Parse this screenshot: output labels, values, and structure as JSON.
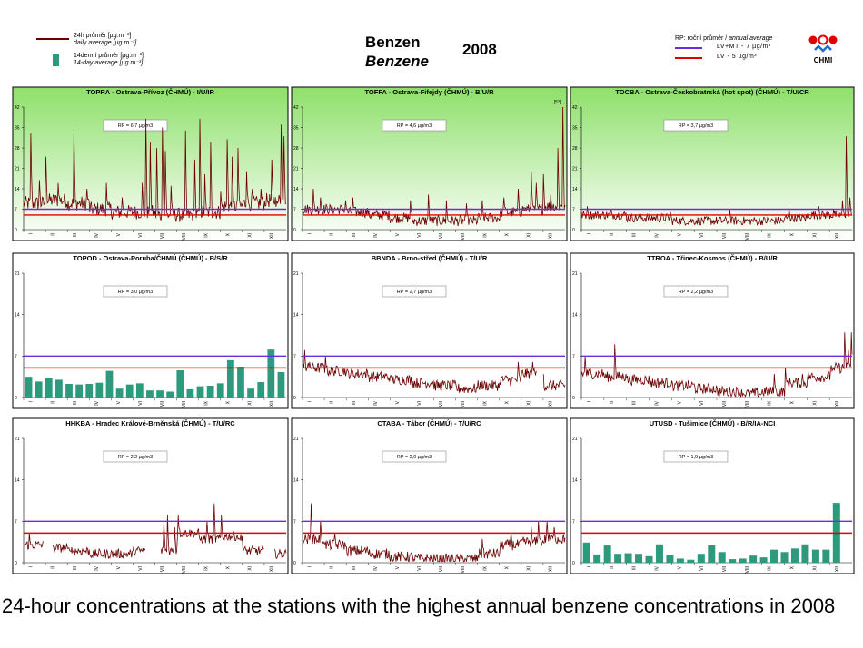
{
  "header": {
    "title_cz": "Benzen",
    "title_en": "Benzene",
    "year": "2008",
    "legend_left": [
      {
        "kind": "line",
        "color": "#6b0000",
        "cz": "24h průměr [µg.m⁻³]",
        "en": "daily average [µg.m⁻³]"
      },
      {
        "kind": "bar",
        "color": "#2e9a7d",
        "cz": "14denní průměr [µg.m⁻³]",
        "en": "14-day average [µg.m⁻³]"
      }
    ],
    "legend_right": {
      "heading_cz": "RP: roční průměr / ",
      "heading_en": "annual average",
      "items": [
        {
          "color": "#6a2ee0",
          "label": "LV+MT -   7 µg/m³"
        },
        {
          "color": "#e00000",
          "label": "LV    - 5 µg/m³"
        }
      ]
    },
    "logo_text": "CHMI"
  },
  "caption": "24-hour concentrations at the stations with the highest annual benzene concentrations in 2008",
  "chart_data": [
    {
      "type": "line",
      "title": "TOPRA - Ostrava-Přívoz (ČHMÚ) - I/U/IR",
      "rp_label": "RP = 6,7 µg/m3",
      "ylim": [
        0,
        42
      ],
      "yticks": [
        0,
        7,
        14,
        21,
        28,
        35,
        42
      ],
      "months": [
        "I",
        "II",
        "III",
        "IV",
        "V",
        "VI",
        "VII",
        "VIII",
        "IX",
        "X",
        "XI",
        "XII"
      ],
      "green_bg": true,
      "reference_lines": [
        {
          "value": 7,
          "color": "#6a2ee0"
        },
        {
          "value": 5,
          "color": "#e00000"
        }
      ],
      "profile": [
        9,
        10,
        9,
        7,
        6,
        6,
        5,
        5,
        6,
        8,
        9,
        10
      ],
      "spikes": [
        [
          10,
          33
        ],
        [
          22,
          17
        ],
        [
          31,
          25
        ],
        [
          48,
          16
        ],
        [
          70,
          34
        ],
        [
          88,
          14
        ],
        [
          115,
          16
        ],
        [
          137,
          11
        ],
        [
          165,
          16
        ],
        [
          170,
          38
        ],
        [
          176,
          30
        ],
        [
          185,
          28
        ],
        [
          193,
          35
        ],
        [
          197,
          27
        ],
        [
          205,
          15
        ],
        [
          225,
          34
        ],
        [
          238,
          24
        ],
        [
          245,
          38
        ],
        [
          252,
          19
        ],
        [
          260,
          30
        ],
        [
          274,
          13
        ],
        [
          283,
          31
        ],
        [
          290,
          25
        ],
        [
          298,
          28
        ],
        [
          310,
          20
        ],
        [
          318,
          14
        ],
        [
          330,
          14
        ],
        [
          345,
          24
        ],
        [
          352,
          10
        ],
        [
          358,
          36
        ],
        [
          362,
          32
        ]
      ],
      "noise": 2.5,
      "clip_label": ""
    },
    {
      "type": "line",
      "title": "TOFFA - Ostrava-Fifejdy (ČHMÚ) - B/U/R",
      "rp_label": "RP = 4,6 µg/m3",
      "ylim": [
        0,
        42
      ],
      "yticks": [
        0,
        7,
        14,
        21,
        28,
        35,
        42
      ],
      "months": [
        "I",
        "II",
        "III",
        "IV",
        "V",
        "VI",
        "VII",
        "VIII",
        "IX",
        "X",
        "XI",
        "XII"
      ],
      "green_bg": true,
      "reference_lines": [
        {
          "value": 7,
          "color": "#6a2ee0"
        },
        {
          "value": 5,
          "color": "#e00000"
        }
      ],
      "profile": [
        7,
        7,
        6,
        5,
        4,
        3,
        3,
        3,
        4,
        6,
        7,
        8
      ],
      "spikes": [
        [
          15,
          14
        ],
        [
          25,
          11
        ],
        [
          60,
          10
        ],
        [
          70,
          11
        ],
        [
          150,
          10
        ],
        [
          175,
          12
        ],
        [
          200,
          10
        ],
        [
          228,
          9
        ],
        [
          250,
          10
        ],
        [
          280,
          11
        ],
        [
          300,
          14
        ],
        [
          318,
          20
        ],
        [
          325,
          16
        ],
        [
          335,
          19
        ],
        [
          345,
          12
        ],
        [
          355,
          28
        ],
        [
          362,
          42
        ]
      ],
      "noise": 1.8,
      "clip_label": "[53]"
    },
    {
      "type": "line",
      "title": "TOCBA - Ostrava-Českobratrská (hot spot) (ČHMÚ) - T/U/CR",
      "rp_label": "RP = 3,7 µg/m3",
      "ylim": [
        0,
        42
      ],
      "yticks": [
        0,
        7,
        14,
        21,
        28,
        35,
        42
      ],
      "months": [
        "I",
        "II",
        "III",
        "IV",
        "V",
        "VI",
        "VII",
        "VIII",
        "IX",
        "X",
        "XI",
        "XII"
      ],
      "green_bg": true,
      "reference_lines": [
        {
          "value": 7,
          "color": "#6a2ee0"
        },
        {
          "value": 5,
          "color": "#e00000"
        }
      ],
      "profile": [
        5,
        5,
        4,
        4,
        3,
        3,
        3,
        3,
        3,
        4,
        5,
        5
      ],
      "spikes": [
        [
          8,
          8
        ],
        [
          40,
          7
        ],
        [
          120,
          6
        ],
        [
          200,
          7
        ],
        [
          280,
          7
        ],
        [
          320,
          8
        ],
        [
          340,
          7
        ],
        [
          352,
          10
        ],
        [
          357,
          32
        ],
        [
          362,
          11
        ]
      ],
      "noise": 1.5,
      "clip_label": ""
    },
    {
      "type": "bar",
      "title": "TOPOD - Ostrava-Poruba/ČHMÚ (ČHMÚ) - B/S/R",
      "rp_label": "RP = 3,0 µg/m3",
      "ylim": [
        0,
        21
      ],
      "yticks": [
        0,
        7,
        14,
        21
      ],
      "months": [
        "I",
        "II",
        "III",
        "IV",
        "V",
        "VI",
        "VII",
        "VIII",
        "IX",
        "X",
        "XI",
        "XII"
      ],
      "green_bg": false,
      "reference_lines": [
        {
          "value": 7,
          "color": "#6a2ee0"
        },
        {
          "value": 5,
          "color": "#e00000"
        }
      ],
      "values": [
        3.5,
        2.7,
        3.3,
        3.0,
        2.3,
        2.2,
        2.3,
        2.5,
        4.5,
        1.5,
        2.2,
        2.4,
        1.2,
        1.2,
        1.0,
        4.6,
        1.4,
        1.9,
        2.0,
        2.4,
        6.3,
        5.2,
        1.5,
        2.6,
        8.1,
        4.3
      ]
    },
    {
      "type": "line",
      "title": "BBNDA - Brno-střed (ČHMÚ) - T/U/R",
      "rp_label": "RP = 2,7 µg/m3",
      "ylim": [
        0,
        21
      ],
      "yticks": [
        0,
        7,
        14,
        21
      ],
      "months": [
        "I",
        "II",
        "III",
        "IV",
        "V",
        "VI",
        "VII",
        "VIII",
        "IX",
        "X",
        "XI",
        "XII"
      ],
      "green_bg": false,
      "reference_lines": [
        {
          "value": 7,
          "color": "#6a2ee0"
        },
        {
          "value": 5,
          "color": "#e00000"
        }
      ],
      "profile": [
        5,
        4.5,
        4,
        3.5,
        3,
        2.5,
        2,
        1.5,
        2,
        3,
        4,
        2
      ],
      "spikes": [
        [
          3,
          8
        ],
        [
          10,
          6
        ],
        [
          32,
          7
        ],
        [
          300,
          6
        ],
        [
          320,
          6
        ],
        [
          330,
          3
        ],
        [
          345,
          3
        ]
      ],
      "noise": 0.9,
      "gaps": [
        [
          326,
          334
        ]
      ],
      "clip_label": ""
    },
    {
      "type": "line",
      "title": "TTROA - Třinec-Kosmos (ČHMÚ) - B/U/R",
      "rp_label": "RP = 2,2 µg/m3",
      "ylim": [
        0,
        21
      ],
      "yticks": [
        0,
        7,
        14,
        21
      ],
      "months": [
        "I",
        "II",
        "III",
        "IV",
        "V",
        "VI",
        "VII",
        "VIII",
        "IX",
        "X",
        "XI",
        "XII"
      ],
      "green_bg": false,
      "reference_lines": [
        {
          "value": 7,
          "color": "#6a2ee0"
        },
        {
          "value": 5,
          "color": "#e00000"
        }
      ],
      "profile": [
        4,
        3.5,
        3,
        2.5,
        2,
        1.5,
        1,
        0.7,
        1,
        2.5,
        3.5,
        5
      ],
      "spikes": [
        [
          5,
          7
        ],
        [
          12,
          5
        ],
        [
          45,
          9
        ],
        [
          60,
          4
        ],
        [
          260,
          4
        ],
        [
          275,
          5
        ],
        [
          298,
          4
        ],
        [
          340,
          5
        ],
        [
          355,
          11
        ],
        [
          360,
          8
        ],
        [
          364,
          11
        ]
      ],
      "noise": 0.9,
      "clip_label": ""
    },
    {
      "type": "line",
      "title": "HHKBA - Hradec Králové-Brněnská (ČHMÚ) - T/U/RC",
      "rp_label": "RP = 2,2 µg/m3",
      "ylim": [
        0,
        21
      ],
      "yticks": [
        0,
        7,
        14,
        21
      ],
      "months": [
        "I",
        "II",
        "III",
        "IV",
        "V",
        "VI",
        "VII",
        "VIII",
        "IX",
        "X",
        "XI",
        "XII"
      ],
      "green_bg": false,
      "reference_lines": [
        {
          "value": 7,
          "color": "#6a2ee0"
        },
        {
          "value": 5,
          "color": "#e00000"
        }
      ],
      "profile": [
        3,
        2.5,
        2,
        1.5,
        1.5,
        2,
        2,
        5,
        4,
        4.5,
        2,
        1.5
      ],
      "spikes": [
        [
          8,
          5
        ],
        [
          65,
          2
        ],
        [
          195,
          7
        ],
        [
          200,
          8
        ],
        [
          210,
          6
        ],
        [
          215,
          8
        ],
        [
          255,
          7
        ],
        [
          265,
          10
        ],
        [
          275,
          8
        ],
        [
          300,
          4
        ]
      ],
      "noise": 0.8,
      "gaps": [
        [
          28,
          40
        ],
        [
          170,
          190
        ],
        [
          335,
          348
        ]
      ],
      "clip_label": ""
    },
    {
      "type": "line",
      "title": "CTABA - Tábor (ČHMÚ) - T/U/RC",
      "rp_label": "RP = 2,0 µg/m3",
      "ylim": [
        0,
        21
      ],
      "yticks": [
        0,
        7,
        14,
        21
      ],
      "months": [
        "I",
        "II",
        "III",
        "IV",
        "V",
        "VI",
        "VII",
        "VIII",
        "IX",
        "X",
        "XI",
        "XII"
      ],
      "green_bg": false,
      "reference_lines": [
        {
          "value": 7,
          "color": "#6a2ee0"
        },
        {
          "value": 5,
          "color": "#e00000"
        }
      ],
      "profile": [
        4,
        3,
        2,
        1.5,
        1,
        0.7,
        0.6,
        0.6,
        1.5,
        3,
        3.5,
        4
      ],
      "spikes": [
        [
          12,
          10
        ],
        [
          25,
          7
        ],
        [
          45,
          5
        ],
        [
          250,
          4
        ],
        [
          290,
          5
        ],
        [
          318,
          6
        ],
        [
          328,
          7
        ],
        [
          340,
          7
        ],
        [
          350,
          6
        ]
      ],
      "noise": 0.9,
      "clip_label": ""
    },
    {
      "type": "bar",
      "title": "UTUSD - Tušimice (ČHMÚ) - B/R/IA-NCI",
      "rp_label": "RP = 1,9 µg/m3",
      "ylim": [
        0,
        21
      ],
      "yticks": [
        0,
        7,
        14,
        21
      ],
      "months": [
        "I",
        "II",
        "III",
        "IV",
        "V",
        "VI",
        "VII",
        "VIII",
        "IX",
        "X",
        "XI",
        "XII"
      ],
      "green_bg": false,
      "reference_lines": [
        {
          "value": 7,
          "color": "#6a2ee0"
        },
        {
          "value": 5,
          "color": "#e00000"
        }
      ],
      "values": [
        3.4,
        1.4,
        2.9,
        1.5,
        1.6,
        1.5,
        1.1,
        3.1,
        1.3,
        0.7,
        0.5,
        1.5,
        3.0,
        1.8,
        0.6,
        0.7,
        1.2,
        0.9,
        2.2,
        1.8,
        2.4,
        3.1,
        2.2,
        2.2,
        10.1,
        0
      ]
    }
  ]
}
